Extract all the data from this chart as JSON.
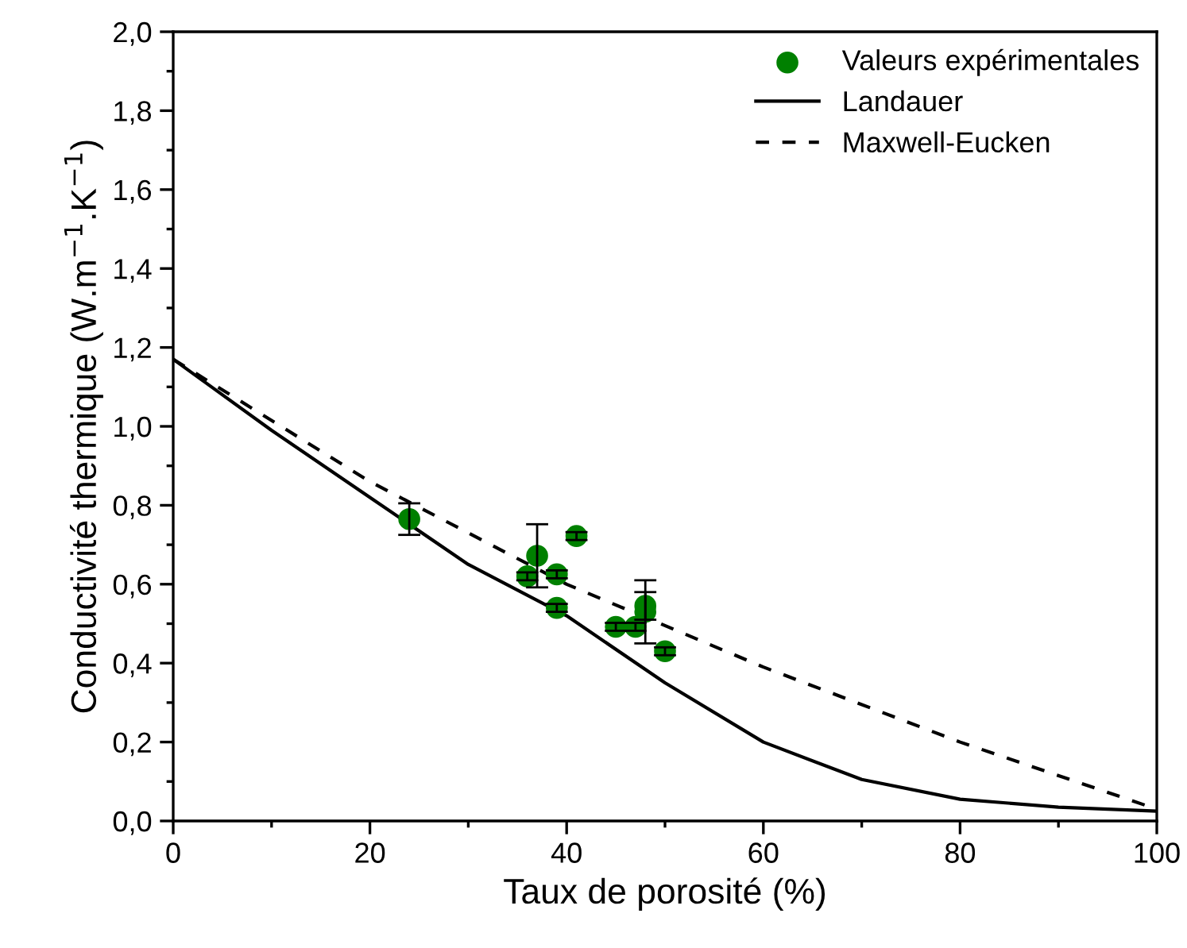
{
  "chart_data": {
    "type": "scatter",
    "xlabel": "Taux de porosité (%)",
    "ylabel": "Conductivité thermique (W.m$^{−1}$.K$^{−1}$)",
    "xlim": [
      0,
      100
    ],
    "xticks": [
      0,
      20,
      40,
      60,
      80,
      100
    ],
    "ylim": [
      0,
      2
    ],
    "yticks": [
      {
        "value": 0,
        "label": "0,0"
      },
      {
        "value": 0.2,
        "label": "0,2"
      },
      {
        "value": 0.4,
        "label": "0,4"
      },
      {
        "value": 0.6,
        "label": "0,6"
      },
      {
        "value": 0.8,
        "label": "0,8"
      },
      {
        "value": 1.0,
        "label": "1,0"
      },
      {
        "value": 1.2,
        "label": "1,2"
      },
      {
        "value": 1.4,
        "label": "1,4"
      },
      {
        "value": 1.6,
        "label": "1,6"
      },
      {
        "value": 1.8,
        "label": "1,8"
      },
      {
        "value": 2.0,
        "label": "2,0"
      }
    ],
    "grid": false,
    "legend": "top right",
    "series": [
      {
        "name": "Valeurs expérimentales",
        "marker": "circle",
        "color": "#008000",
        "x": [
          24,
          36,
          37,
          39,
          39,
          41,
          45,
          47,
          48,
          48,
          50
        ],
        "values": [
          0.765,
          0.62,
          0.672,
          0.54,
          0.625,
          0.722,
          0.492,
          0.492,
          0.53,
          0.545,
          0.43
        ],
        "errors": [
          0.04,
          0.01,
          0.08,
          0.01,
          0.01,
          0.01,
          0.01,
          0.01,
          0.08,
          0.035,
          0.01
        ]
      },
      {
        "name": "Landauer",
        "type": "line",
        "line_style": "solid",
        "color": "#000000",
        "x": [
          0,
          10,
          20,
          30,
          40,
          50,
          60,
          70,
          80,
          90,
          100
        ],
        "values": [
          1.17,
          0.99,
          0.82,
          0.65,
          0.52,
          0.35,
          0.2,
          0.105,
          0.055,
          0.035,
          0.025
        ]
      },
      {
        "name": "Maxwell-Eucken",
        "type": "line",
        "line_style": "dashed",
        "color": "#000000",
        "x": [
          0,
          20,
          40,
          60,
          80,
          100
        ],
        "values": [
          1.17,
          0.86,
          0.6,
          0.39,
          0.2,
          0.03
        ]
      }
    ]
  }
}
